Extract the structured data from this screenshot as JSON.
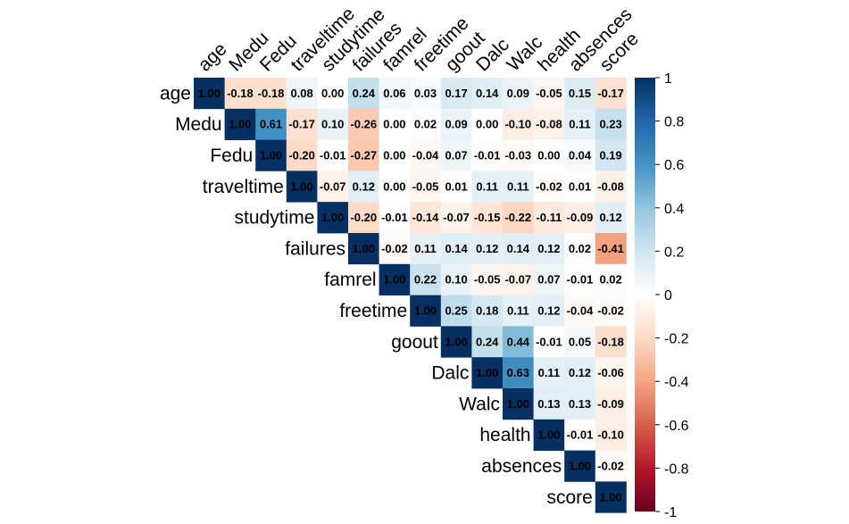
{
  "chart_data": {
    "type": "heatmap",
    "title": "",
    "variables": [
      "age",
      "Medu",
      "Fedu",
      "traveltime",
      "studytime",
      "failures",
      "famrel",
      "freetime",
      "goout",
      "Dalc",
      "Walc",
      "health",
      "absences",
      "score"
    ],
    "layout": "upper-triangle",
    "matrix": [
      [
        1.0,
        -0.18,
        -0.18,
        0.08,
        0.0,
        0.24,
        0.06,
        0.03,
        0.17,
        0.14,
        0.09,
        -0.05,
        0.15,
        -0.17
      ],
      [
        null,
        1.0,
        0.61,
        -0.17,
        0.1,
        -0.26,
        0.0,
        0.02,
        0.09,
        0.0,
        -0.1,
        -0.08,
        0.11,
        0.23
      ],
      [
        null,
        null,
        1.0,
        -0.2,
        -0.01,
        -0.27,
        0.0,
        -0.04,
        0.07,
        -0.01,
        -0.03,
        0.0,
        0.04,
        0.19
      ],
      [
        null,
        null,
        null,
        1.0,
        -0.07,
        0.12,
        0.0,
        -0.05,
        0.01,
        0.11,
        0.11,
        -0.02,
        0.01,
        -0.08
      ],
      [
        null,
        null,
        null,
        null,
        1.0,
        -0.2,
        -0.01,
        -0.14,
        -0.07,
        -0.15,
        -0.22,
        -0.11,
        -0.09,
        0.12
      ],
      [
        null,
        null,
        null,
        null,
        null,
        1.0,
        -0.02,
        0.11,
        0.14,
        0.12,
        0.14,
        0.12,
        0.02,
        -0.41
      ],
      [
        null,
        null,
        null,
        null,
        null,
        null,
        1.0,
        0.22,
        0.1,
        -0.05,
        -0.07,
        0.07,
        -0.01,
        0.02
      ],
      [
        null,
        null,
        null,
        null,
        null,
        null,
        null,
        1.0,
        0.25,
        0.18,
        0.11,
        0.12,
        -0.04,
        -0.02
      ],
      [
        null,
        null,
        null,
        null,
        null,
        null,
        null,
        null,
        1.0,
        0.24,
        0.44,
        -0.01,
        0.05,
        -0.18
      ],
      [
        null,
        null,
        null,
        null,
        null,
        null,
        null,
        null,
        null,
        1.0,
        0.63,
        0.11,
        0.12,
        -0.06
      ],
      [
        null,
        null,
        null,
        null,
        null,
        null,
        null,
        null,
        null,
        null,
        1.0,
        0.13,
        0.13,
        -0.09
      ],
      [
        null,
        null,
        null,
        null,
        null,
        null,
        null,
        null,
        null,
        null,
        null,
        1.0,
        -0.01,
        -0.1
      ],
      [
        null,
        null,
        null,
        null,
        null,
        null,
        null,
        null,
        null,
        null,
        null,
        null,
        1.0,
        -0.02
      ],
      [
        null,
        null,
        null,
        null,
        null,
        null,
        null,
        null,
        null,
        null,
        null,
        null,
        null,
        1.0
      ]
    ],
    "colorbar": {
      "range": [
        -1,
        1
      ],
      "ticks": [
        1,
        0.8,
        0.6,
        0.4,
        0.2,
        0,
        -0.2,
        -0.4,
        -0.6,
        -0.8,
        -1
      ],
      "tick_labels": [
        "1",
        "0.8",
        "0.6",
        "0.4",
        "0.2",
        "0",
        "-0.2",
        "-0.4",
        "-0.6",
        "-0.8",
        "-1"
      ],
      "palette": [
        "#67001F",
        "#B2182B",
        "#D6604D",
        "#F4A582",
        "#FDDBC7",
        "#FFFFFF",
        "#D1E5F0",
        "#92C5DE",
        "#4393C3",
        "#2166AC",
        "#053061"
      ],
      "placement": "right"
    },
    "grid": false,
    "legend": "colorbar-right"
  }
}
